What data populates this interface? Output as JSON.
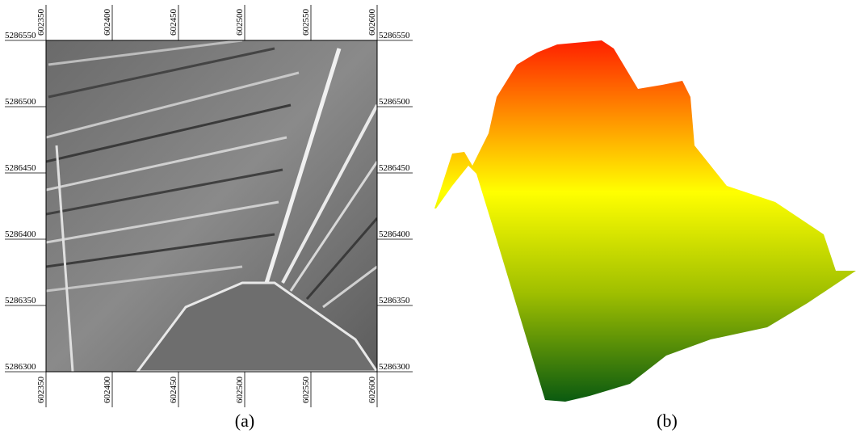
{
  "panel_a": {
    "x_ticks": [
      602350,
      602400,
      602450,
      602500,
      602550,
      602600
    ],
    "y_ticks": [
      5286550,
      5286500,
      5286450,
      5286400,
      5286350,
      5286300
    ],
    "caption": "(a)"
  },
  "panel_b": {
    "caption": "(b)"
  }
}
